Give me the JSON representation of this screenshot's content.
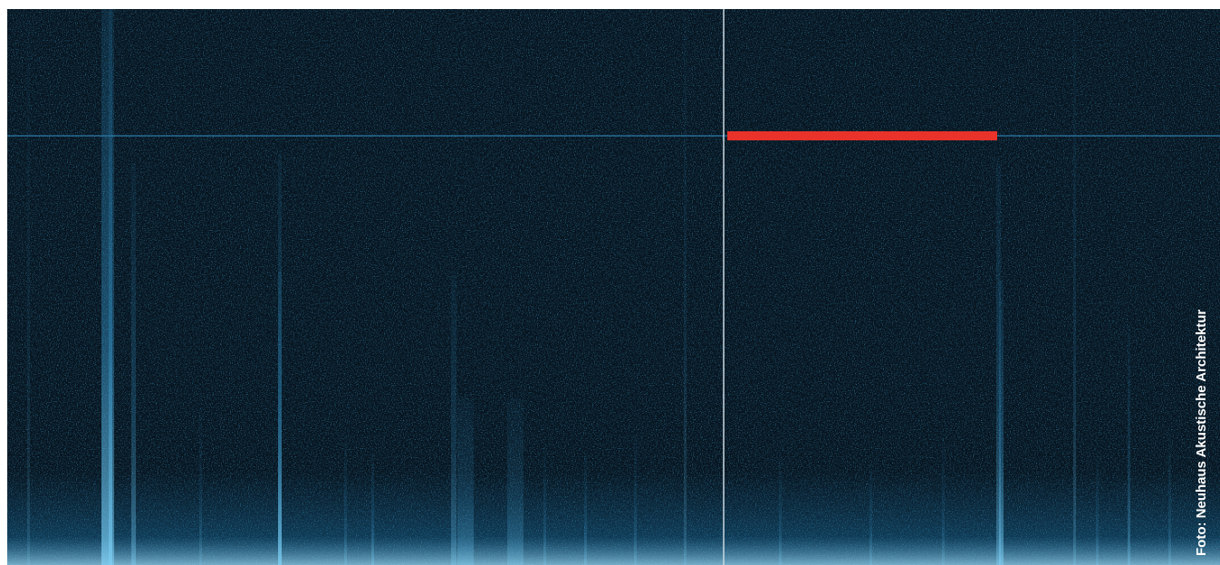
{
  "credit": "Foto: Neuhaus Akustische Architektur"
}
